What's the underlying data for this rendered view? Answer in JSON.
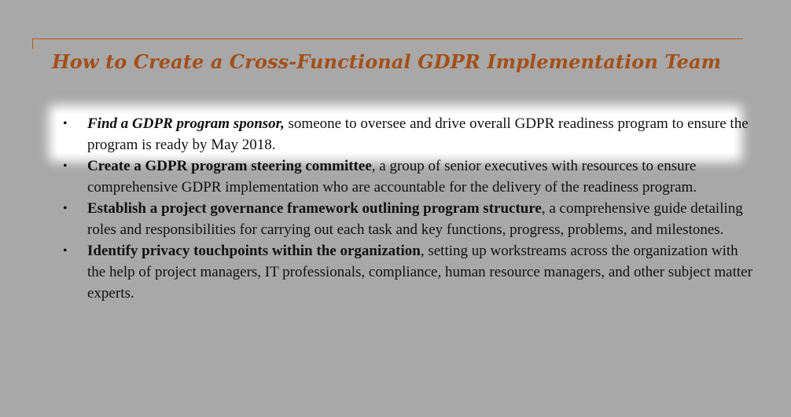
{
  "slide": {
    "title": "How to Create a Cross-Functional GDPR Implementation Team",
    "bullets": [
      {
        "lead": "Find a GDPR program sponsor",
        "lead_punct": ",",
        "text": " someone to oversee and drive overall GDPR readiness program to ensure the program is ready by May 2018.",
        "highlighted": true
      },
      {
        "lead": "Create a GDPR program steering committee",
        "lead_punct": "",
        "text": ", a group of senior executives with resources to ensure comprehensive GDPR implementation who are accountable for the delivery of the readiness program.",
        "highlighted": false
      },
      {
        "lead": "Establish a project governance framework outlining program structure",
        "lead_punct": "",
        "text": ", a comprehensive guide detailing roles and responsibilities for carrying out each task and key functions, progress, problems, and milestones.",
        "highlighted": false
      },
      {
        "lead": "Identify privacy touchpoints within the organization",
        "lead_punct": "",
        "text": ", setting up workstreams across the organization with the help of project managers, IT professionals, compliance, human resource managers, and other subject matter experts.",
        "highlighted": false
      }
    ],
    "bullet_symbol": "•",
    "colors": {
      "background": "#a8a8a8",
      "title": "#a2501a",
      "rule": "#b85c17",
      "highlight": "#ffffff",
      "text": "#111111"
    }
  }
}
